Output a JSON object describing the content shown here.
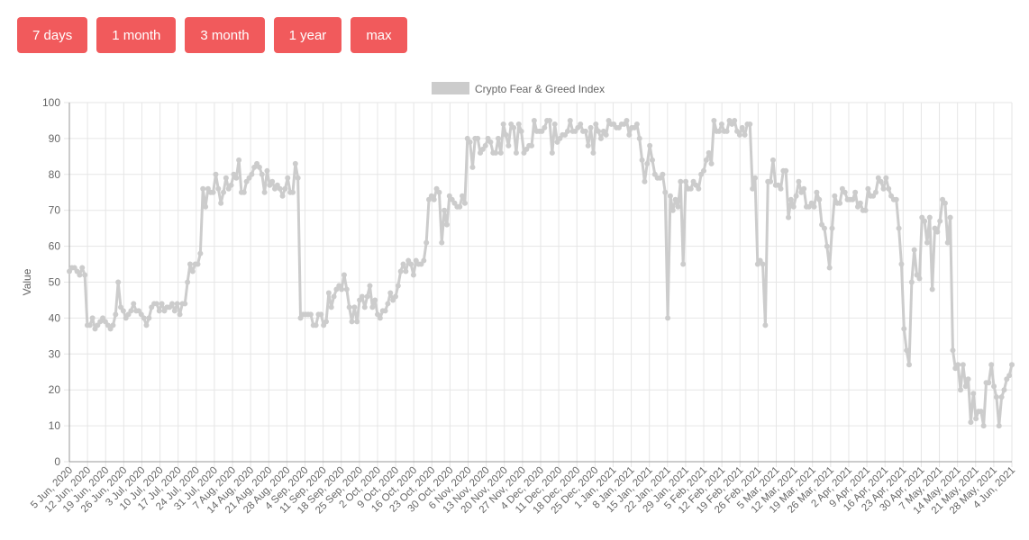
{
  "range_buttons": [
    {
      "label": "7 days"
    },
    {
      "label": "1 month"
    },
    {
      "label": "3 month"
    },
    {
      "label": "1 year"
    },
    {
      "label": "max"
    }
  ],
  "colors": {
    "button": "#f15a5c",
    "line": "#cccccc",
    "grid": "#e6e6e6",
    "axis": "#999999"
  },
  "chart_data": {
    "type": "line",
    "title": "",
    "xlabel": "",
    "ylabel": "Value",
    "ylim": [
      0,
      100
    ],
    "yticks": [
      0,
      10,
      20,
      30,
      40,
      50,
      60,
      70,
      80,
      90,
      100
    ],
    "grid": true,
    "legend_position": "top-center",
    "x_tick_labels": [
      "5 Jun, 2020",
      "12 Jun, 2020",
      "19 Jun, 2020",
      "26 Jun, 2020",
      "3 Jul, 2020",
      "10 Jul, 2020",
      "17 Jul, 2020",
      "24 Jul, 2020",
      "31 Jul, 2020",
      "7 Aug, 2020",
      "14 Aug, 2020",
      "21 Aug, 2020",
      "28 Aug, 2020",
      "4 Sep, 2020",
      "11 Sep, 2020",
      "18 Sep, 2020",
      "25 Sep, 2020",
      "2 Oct, 2020",
      "9 Oct, 2020",
      "16 Oct, 2020",
      "23 Oct, 2020",
      "30 Oct, 2020",
      "6 Nov, 2020",
      "13 Nov, 2020",
      "20 Nov, 2020",
      "27 Nov, 2020",
      "4 Dec, 2020",
      "11 Dec, 2020",
      "18 Dec, 2020",
      "25 Dec, 2020",
      "1 Jan, 2021",
      "8 Jan, 2021",
      "15 Jan, 2021",
      "22 Jan, 2021",
      "29 Jan, 2021",
      "5 Feb, 2021",
      "12 Feb, 2021",
      "19 Feb, 2021",
      "26 Feb, 2021",
      "5 Mar, 2021",
      "12 Mar, 2021",
      "19 Mar, 2021",
      "26 Mar, 2021",
      "2 Apr, 2021",
      "9 Apr, 2021",
      "16 Apr, 2021",
      "23 Apr, 2021",
      "30 Apr, 2021",
      "7 May, 2021",
      "14 May, 2021",
      "21 May, 2021",
      "28 May, 2021",
      "4 Jun, 2021"
    ],
    "series": [
      {
        "name": "Crypto Fear & Greed Index",
        "color": "#cccccc",
        "values": [
          53,
          54,
          54,
          53,
          52,
          54,
          52,
          38,
          38,
          40,
          37,
          38,
          39,
          40,
          39,
          38,
          37,
          38,
          41,
          50,
          43,
          42,
          40,
          41,
          42,
          44,
          42,
          42,
          41,
          40,
          38,
          40,
          43,
          44,
          44,
          42,
          44,
          42,
          43,
          43,
          44,
          42,
          44,
          41,
          44,
          44,
          50,
          55,
          53,
          55,
          55,
          58,
          76,
          71,
          76,
          75,
          75,
          80,
          76,
          72,
          75,
          79,
          76,
          77,
          80,
          79,
          84,
          75,
          75,
          78,
          79,
          80,
          82,
          83,
          82,
          80,
          75,
          81,
          77,
          78,
          76,
          77,
          76,
          74,
          76,
          79,
          75,
          75,
          83,
          79,
          40,
          41,
          41,
          41,
          41,
          38,
          38,
          41,
          41,
          38,
          39,
          47,
          43,
          46,
          48,
          49,
          48,
          52,
          48,
          43,
          39,
          43,
          39,
          45,
          46,
          43,
          46,
          49,
          43,
          45,
          41,
          40,
          42,
          42,
          44,
          47,
          45,
          46,
          49,
          53,
          55,
          53,
          56,
          55,
          52,
          56,
          55,
          55,
          56,
          61,
          73,
          74,
          73,
          76,
          75,
          61,
          70,
          66,
          74,
          73,
          72,
          71,
          71,
          74,
          72,
          90,
          89,
          82,
          90,
          90,
          86,
          87,
          88,
          90,
          89,
          86,
          86,
          90,
          86,
          94,
          91,
          88,
          94,
          93,
          86,
          94,
          92,
          86,
          87,
          88,
          88,
          95,
          92,
          92,
          92,
          93,
          95,
          95,
          86,
          94,
          89,
          90,
          91,
          91,
          92,
          95,
          92,
          92,
          93,
          94,
          92,
          92,
          88,
          93,
          86,
          94,
          92,
          90,
          92,
          91,
          95,
          94,
          94,
          93,
          93,
          94,
          94,
          95,
          91,
          93,
          93,
          94,
          90,
          84,
          78,
          83,
          88,
          84,
          80,
          79,
          79,
          80,
          75,
          40,
          74,
          70,
          73,
          71,
          78,
          55,
          78,
          76,
          76,
          78,
          77,
          76,
          80,
          81,
          84,
          86,
          83,
          95,
          92,
          92,
          94,
          92,
          92,
          95,
          94,
          95,
          92,
          91,
          93,
          91,
          94,
          94,
          76,
          79,
          55,
          56,
          55,
          38,
          78,
          78,
          84,
          77,
          77,
          76,
          81,
          81,
          68,
          73,
          71,
          74,
          78,
          75,
          76,
          71,
          71,
          72,
          71,
          75,
          73,
          66,
          65,
          60,
          54,
          65,
          74,
          72,
          72,
          76,
          75,
          73,
          73,
          73,
          75,
          71,
          72,
          70,
          70,
          76,
          74,
          74,
          75,
          79,
          78,
          76,
          79,
          76,
          74,
          73,
          73,
          65,
          55,
          37,
          31,
          27,
          50,
          59,
          52,
          51,
          68,
          67,
          61,
          68,
          48,
          65,
          64,
          67,
          73,
          72,
          61,
          68,
          31,
          26,
          27,
          20,
          27,
          21,
          23,
          11,
          19,
          12,
          14,
          14,
          10,
          22,
          22,
          27,
          21,
          18,
          10,
          18,
          20,
          23,
          24,
          27
        ]
      }
    ]
  }
}
